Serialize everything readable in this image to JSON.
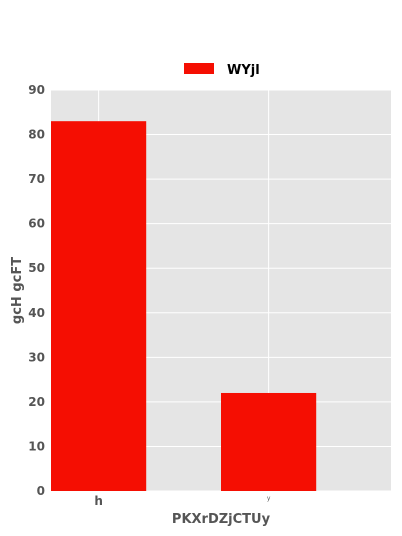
{
  "chart_data": {
    "type": "bar",
    "categories": [
      "h",
      "y"
    ],
    "series": [
      {
        "name": "WYjl",
        "values": [
          83,
          22
        ],
        "color": "#f50e02"
      }
    ],
    "xlabel": "PKXrDZjCTUy",
    "ylabel": "gcH gcFT",
    "ylim": [
      0,
      90
    ],
    "yticks": [
      0,
      10,
      20,
      30,
      40,
      50,
      60,
      70,
      80,
      90
    ],
    "grid": true,
    "background": "#e5e5e5",
    "gridColor": "#ffffff",
    "legend": {
      "position": "top-center"
    }
  }
}
